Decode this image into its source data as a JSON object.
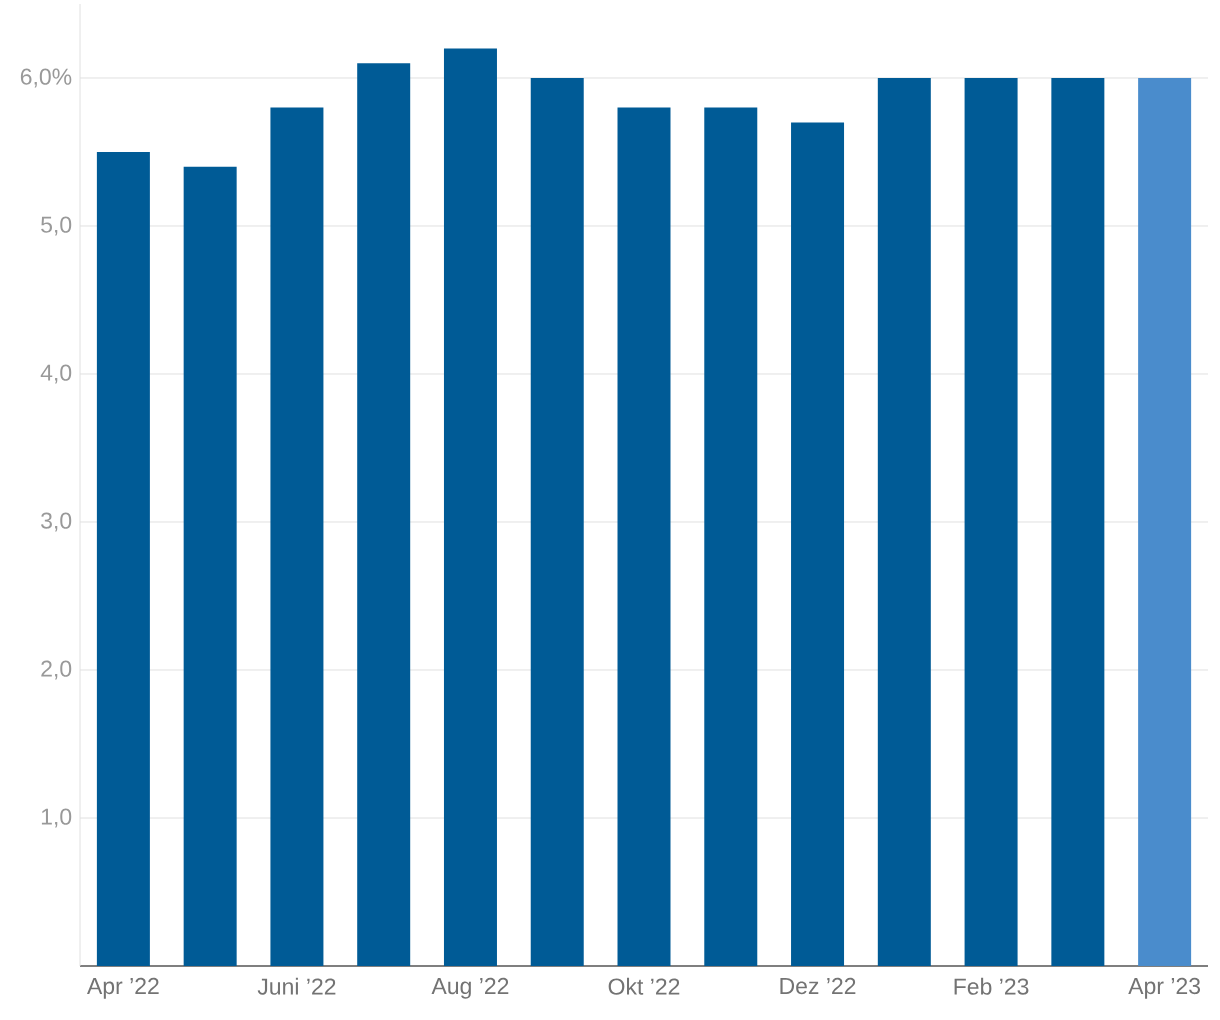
{
  "chart_data": {
    "type": "bar",
    "categories": [
      "Apr ’22",
      null,
      "Juni ’22",
      null,
      "Aug ’22",
      null,
      "Okt ’22",
      null,
      "Dez ’22",
      null,
      "Feb ’23",
      null,
      "Apr ’23"
    ],
    "values": [
      5.5,
      5.4,
      5.8,
      6.1,
      6.2,
      6.0,
      5.8,
      5.8,
      5.7,
      6.0,
      6.0,
      6.0,
      6.0
    ],
    "colors": [
      "#005b96",
      "#005b96",
      "#005b96",
      "#005b96",
      "#005b96",
      "#005b96",
      "#005b96",
      "#005b96",
      "#005b96",
      "#005b96",
      "#005b96",
      "#005b96",
      "#4a8ccc"
    ],
    "ylim": [
      0,
      6.5
    ],
    "yticks": [
      {
        "value": 1,
        "label": "1,0"
      },
      {
        "value": 2,
        "label": "2,0"
      },
      {
        "value": 3,
        "label": "3,0"
      },
      {
        "value": 4,
        "label": "4,0"
      },
      {
        "value": 5,
        "label": "5,0"
      },
      {
        "value": 6,
        "label": "6,0%"
      }
    ],
    "grid": "y"
  }
}
